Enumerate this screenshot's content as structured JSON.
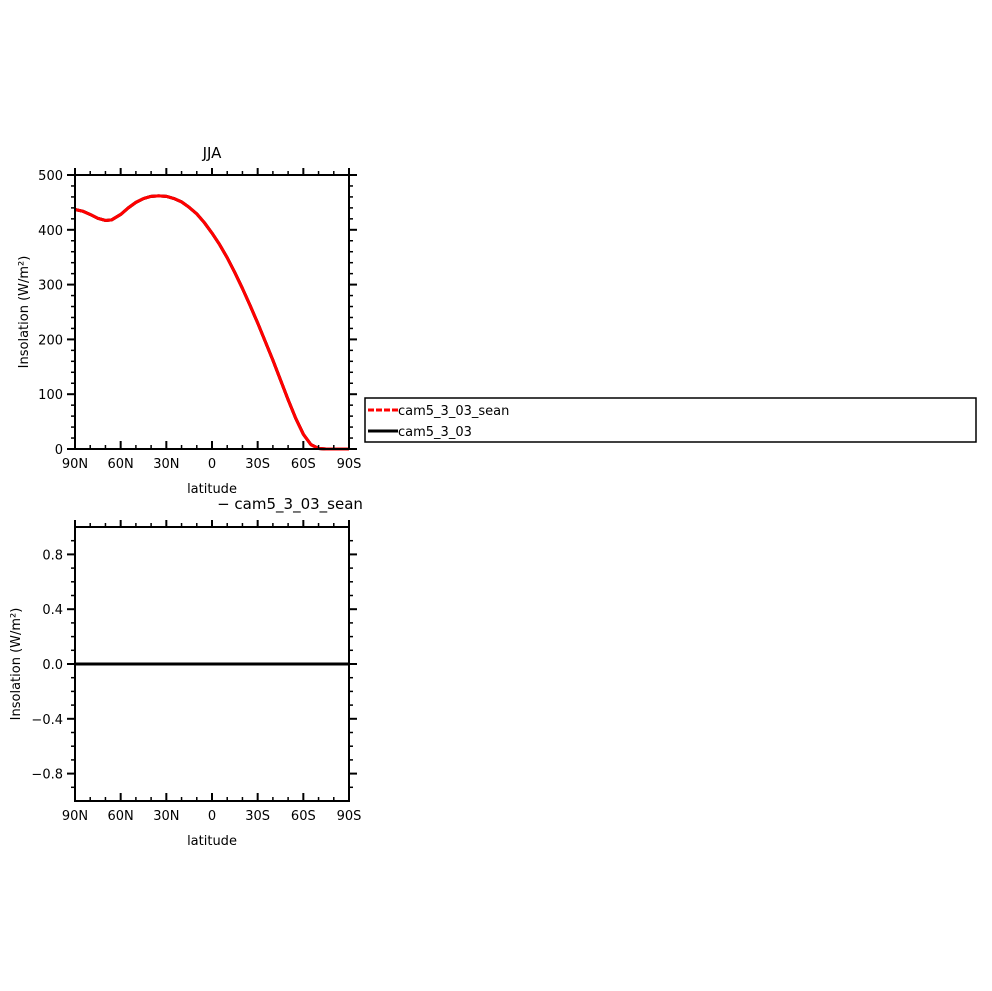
{
  "chart_data": [
    {
      "type": "line",
      "title": "JJA",
      "xlabel": "latitude",
      "ylabel": "Insolation (W/m²)",
      "x_ticks": [
        "90N",
        "60N",
        "30N",
        "0",
        "30S",
        "60S",
        "90S"
      ],
      "y_ticks": [
        "0",
        "100",
        "200",
        "300",
        "400",
        "500"
      ],
      "xlim": [
        90,
        -90
      ],
      "ylim": [
        0,
        500
      ],
      "legend_position": "right",
      "series": [
        {
          "name": "cam5_3_03_sean",
          "color": "#ff0000",
          "style": "dashed",
          "x": [
            90,
            85,
            80,
            75,
            70,
            66,
            60,
            55,
            50,
            45,
            40,
            35,
            30,
            25,
            20,
            15,
            10,
            5,
            0,
            -5,
            -10,
            -15,
            -20,
            -25,
            -30,
            -35,
            -40,
            -45,
            -50,
            -55,
            -60,
            -65,
            -70,
            -75,
            -80,
            -85,
            -90
          ],
          "values": [
            437,
            434,
            428,
            421,
            417,
            418,
            428,
            440,
            450,
            457,
            461,
            462,
            461,
            457,
            451,
            441,
            429,
            413,
            394,
            373,
            349,
            322,
            293,
            262,
            230,
            196,
            162,
            126,
            90,
            56,
            27,
            8,
            1,
            0,
            0,
            0,
            0
          ]
        },
        {
          "name": "cam5_3_03",
          "color": "#000000",
          "style": "solid",
          "x": [
            90,
            85,
            80,
            75,
            70,
            66,
            60,
            55,
            50,
            45,
            40,
            35,
            30,
            25,
            20,
            15,
            10,
            5,
            0,
            -5,
            -10,
            -15,
            -20,
            -25,
            -30,
            -35,
            -40,
            -45,
            -50,
            -55,
            -60,
            -65,
            -70,
            -75,
            -80,
            -85,
            -90
          ],
          "values": [
            437,
            434,
            428,
            421,
            417,
            418,
            428,
            440,
            450,
            457,
            461,
            462,
            461,
            457,
            451,
            441,
            429,
            413,
            394,
            373,
            349,
            322,
            293,
            262,
            230,
            196,
            162,
            126,
            90,
            56,
            27,
            8,
            1,
            0,
            0,
            0,
            0
          ]
        }
      ]
    },
    {
      "type": "line",
      "title": "− cam5_3_03_sean",
      "xlabel": "latitude",
      "ylabel": "Insolation (W/m²)",
      "x_ticks": [
        "90N",
        "60N",
        "30N",
        "0",
        "30S",
        "60S",
        "90S"
      ],
      "y_ticks": [
        "−0.8",
        "−0.4",
        "0.0",
        "0.4",
        "0.8"
      ],
      "xlim": [
        90,
        -90
      ],
      "ylim": [
        -1,
        1
      ],
      "series": [
        {
          "color": "#000000",
          "style": "solid",
          "x": [
            90,
            -90
          ],
          "values": [
            0,
            0
          ]
        }
      ]
    }
  ]
}
